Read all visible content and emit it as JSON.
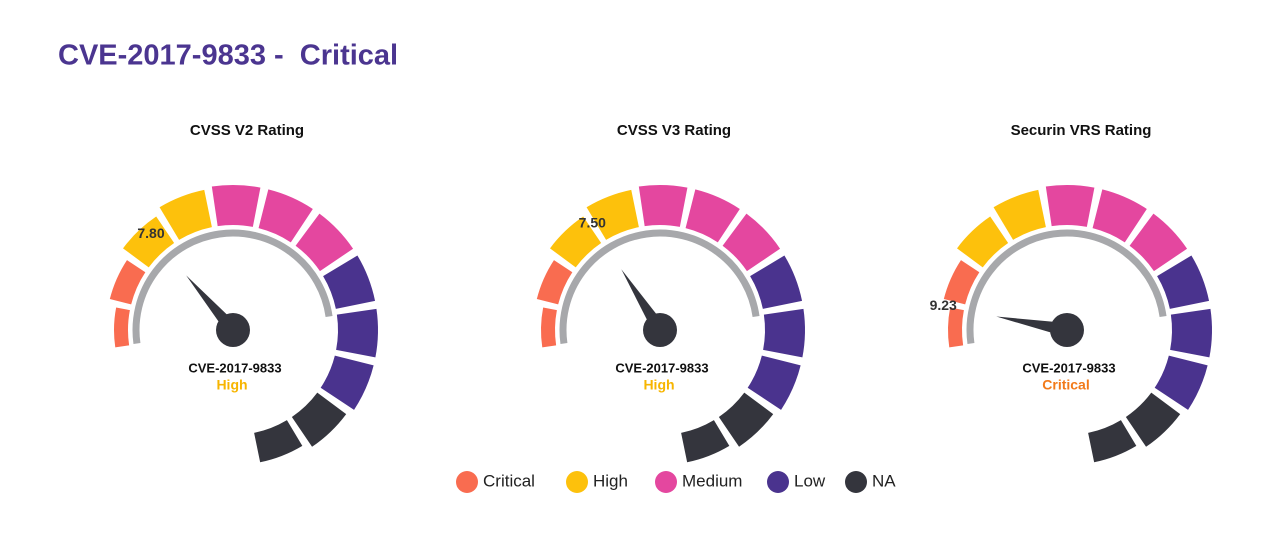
{
  "header": {
    "title": "CVE-2017-9833 -  Critical"
  },
  "chart_data": [
    {
      "type": "gauge",
      "title": "CVSS V2 Rating",
      "values": [
        7.8
      ],
      "value_labels": [
        "7.80"
      ],
      "ylim": [
        10,
        0
      ],
      "name": "CVE-2017-9833",
      "severity": "High",
      "severity_color": "#f7b500"
    },
    {
      "type": "gauge",
      "title": "CVSS V3 Rating",
      "values": [
        7.5
      ],
      "value_labels": [
        "7.50"
      ],
      "ylim": [
        10,
        0
      ],
      "name": "CVE-2017-9833",
      "severity": "High",
      "severity_color": "#f7b500"
    },
    {
      "type": "gauge",
      "title": "Securin VRS Rating",
      "values": [
        9.23
      ],
      "value_labels": [
        "9.23"
      ],
      "ylim": [
        10,
        0
      ],
      "name": "CVE-2017-9833",
      "severity": "Critical",
      "severity_color": "#f27a1a"
    }
  ],
  "legend": [
    {
      "name": "Critical",
      "color": "#f96c50"
    },
    {
      "name": "High",
      "color": "#fdc10c"
    },
    {
      "name": "Medium",
      "color": "#e4479f"
    },
    {
      "name": "Low",
      "color": "#4a338e"
    },
    {
      "name": "NA",
      "color": "#34353d"
    }
  ]
}
